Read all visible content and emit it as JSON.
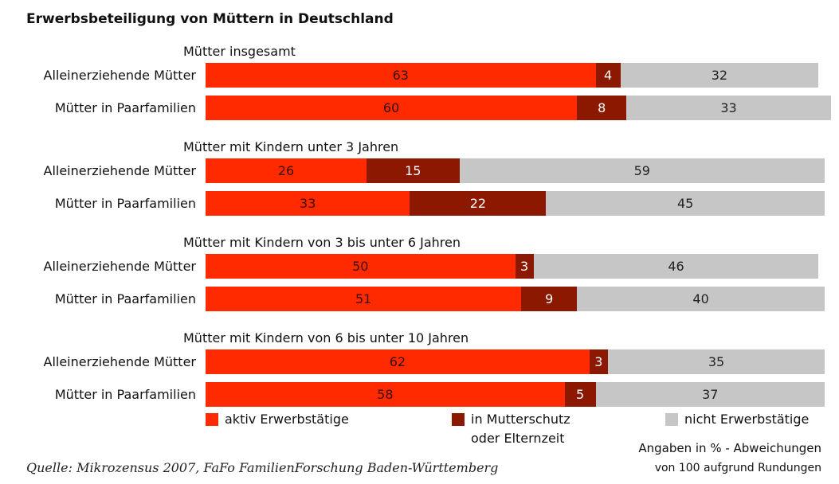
{
  "title": "Erwerbsbeteiligung von Müttern in Deutschland",
  "note_lines": [
    "Angaben in % - Abweichungen",
    "von 100 aufgrund Rundungen"
  ],
  "source": "Quelle: Mikrozensus 2007, FaFo FamilienForschung Baden-Württemberg",
  "chart_data": [
    {
      "type": "bar",
      "stacked": true,
      "orientation": "horizontal",
      "title": "Mütter insgesamt",
      "xlim": [
        0,
        100
      ],
      "categories": [
        "Alleinerziehende Mütter",
        "Mütter in Paarfamilien"
      ],
      "series": [
        {
          "name": "aktiv Erwerbstätige",
          "color": "#ff2a00",
          "values": [
            63,
            60
          ]
        },
        {
          "name": "in Mutterschutz oder Elternzeit",
          "color": "#8c1800",
          "values": [
            4,
            8
          ]
        },
        {
          "name": "nicht Erwerbstätige",
          "color": "#c6c6c6",
          "values": [
            32,
            33
          ]
        }
      ]
    },
    {
      "type": "bar",
      "stacked": true,
      "orientation": "horizontal",
      "title": "Mütter mit Kindern unter 3 Jahren",
      "xlim": [
        0,
        100
      ],
      "categories": [
        "Alleinerziehende Mütter",
        "Mütter in Paarfamilien"
      ],
      "series": [
        {
          "name": "aktiv Erwerbstätige",
          "color": "#ff2a00",
          "values": [
            26,
            33
          ]
        },
        {
          "name": "in Mutterschutz oder Elternzeit",
          "color": "#8c1800",
          "values": [
            15,
            22
          ]
        },
        {
          "name": "nicht Erwerbstätige",
          "color": "#c6c6c6",
          "values": [
            59,
            45
          ]
        }
      ]
    },
    {
      "type": "bar",
      "stacked": true,
      "orientation": "horizontal",
      "title": "Mütter mit Kindern von 3 bis unter 6 Jahren",
      "xlim": [
        0,
        100
      ],
      "categories": [
        "Alleinerziehende Mütter",
        "Mütter in Paarfamilien"
      ],
      "series": [
        {
          "name": "aktiv Erwerbstätige",
          "color": "#ff2a00",
          "values": [
            50,
            51
          ]
        },
        {
          "name": "in Mutterschutz oder Elternzeit",
          "color": "#8c1800",
          "values": [
            3,
            9
          ]
        },
        {
          "name": "nicht Erwerbstätige",
          "color": "#c6c6c6",
          "values": [
            46,
            40
          ]
        }
      ]
    },
    {
      "type": "bar",
      "stacked": true,
      "orientation": "horizontal",
      "title": "Mütter mit Kindern von 6 bis unter 10 Jahren",
      "xlim": [
        0,
        100
      ],
      "categories": [
        "Alleinerziehende Mütter",
        "Mütter in Paarfamilien"
      ],
      "series": [
        {
          "name": "aktiv Erwerbstätige",
          "color": "#ff2a00",
          "values": [
            62,
            58
          ]
        },
        {
          "name": "in Mutterschutz oder Elternzeit",
          "color": "#8c1800",
          "values": [
            3,
            5
          ]
        },
        {
          "name": "nicht Erwerbstätige",
          "color": "#c6c6c6",
          "values": [
            35,
            37
          ]
        }
      ]
    }
  ]
}
